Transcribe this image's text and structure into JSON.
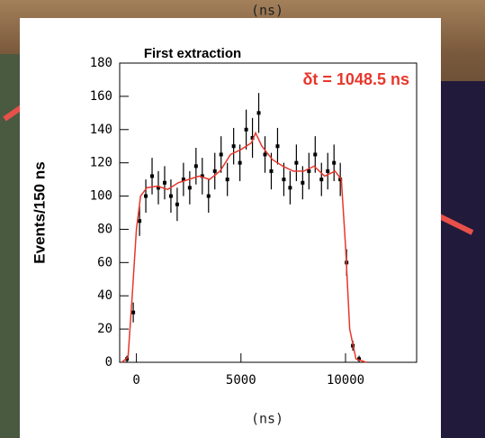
{
  "chart_data": {
    "type": "scatter",
    "title": "First extraction",
    "top_label": "(ns)",
    "x_label": "(ns)",
    "y_label": "Events/150 ns",
    "annotation": "δt = 1048.5 ns",
    "annotation_color": "#e8372c",
    "xlim": [
      -800,
      13400
    ],
    "xticks": [
      0,
      5000,
      10000
    ],
    "ylim": [
      0,
      180
    ],
    "yticks": [
      0,
      20,
      40,
      60,
      80,
      100,
      120,
      140,
      160,
      180
    ],
    "series": [
      {
        "type": "errorbar",
        "color": "#000000",
        "x": [
          -450,
          -150,
          150,
          450,
          750,
          1050,
          1350,
          1650,
          1950,
          2250,
          2550,
          2850,
          3150,
          3450,
          3750,
          4050,
          4350,
          4650,
          4950,
          5250,
          5550,
          5850,
          6150,
          6450,
          6750,
          7050,
          7350,
          7650,
          7950,
          8250,
          8550,
          8850,
          9150,
          9450,
          9750,
          10050,
          10350,
          10650
        ],
        "values": [
          2,
          30,
          85,
          100,
          112,
          105,
          108,
          100,
          95,
          110,
          105,
          118,
          112,
          100,
          115,
          125,
          110,
          130,
          120,
          140,
          135,
          150,
          125,
          115,
          130,
          110,
          105,
          120,
          108,
          115,
          125,
          110,
          115,
          120,
          110,
          60,
          10,
          2
        ],
        "errors": [
          2,
          6,
          9,
          10,
          11,
          10,
          10,
          10,
          10,
          10,
          10,
          11,
          11,
          10,
          11,
          11,
          10,
          11,
          11,
          12,
          12,
          12,
          11,
          11,
          11,
          10,
          10,
          11,
          10,
          11,
          11,
          10,
          11,
          11,
          10,
          8,
          3,
          2
        ]
      },
      {
        "type": "line",
        "color": "#e8372c",
        "x": [
          -700,
          -400,
          -200,
          0,
          200,
          500,
          1000,
          1500,
          2000,
          2500,
          3000,
          3500,
          4000,
          4500,
          5000,
          5500,
          5700,
          6000,
          6500,
          7000,
          7500,
          8000,
          8500,
          9000,
          9500,
          9800,
          10000,
          10200,
          10500,
          11000
        ],
        "values": [
          0,
          3,
          40,
          80,
          100,
          105,
          106,
          104,
          108,
          110,
          112,
          110,
          115,
          125,
          128,
          132,
          138,
          130,
          122,
          118,
          115,
          115,
          118,
          112,
          115,
          110,
          70,
          20,
          2,
          0
        ]
      }
    ]
  }
}
